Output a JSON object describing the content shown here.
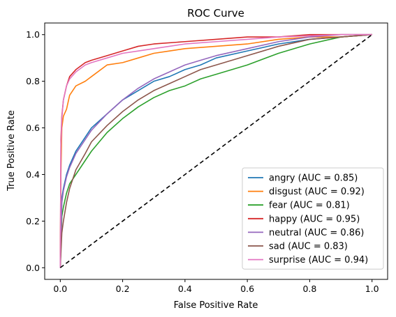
{
  "chart_data": {
    "type": "line",
    "title": "ROC Curve",
    "xlabel": "False Positive Rate",
    "ylabel": "True Positive Rate",
    "xlim": [
      -0.05,
      1.05
    ],
    "ylim": [
      -0.05,
      1.05
    ],
    "xticks": [
      "0.0",
      "0.2",
      "0.4",
      "0.6",
      "0.8",
      "1.0"
    ],
    "yticks": [
      "0.0",
      "0.2",
      "0.4",
      "0.6",
      "0.8",
      "1.0"
    ],
    "grid": false,
    "legend_position": "lower-right",
    "diagonal": {
      "x": [
        0,
        1
      ],
      "y": [
        0,
        1
      ],
      "color": "#000000",
      "dash": true
    },
    "series": [
      {
        "name": "angry (AUC = 0.85)",
        "color": "#1f77b4",
        "x": [
          0,
          0.005,
          0.01,
          0.02,
          0.03,
          0.05,
          0.08,
          0.1,
          0.15,
          0.2,
          0.25,
          0.3,
          0.35,
          0.4,
          0.45,
          0.5,
          0.6,
          0.7,
          0.8,
          0.9,
          1.0
        ],
        "y": [
          0,
          0.3,
          0.34,
          0.4,
          0.44,
          0.5,
          0.56,
          0.6,
          0.66,
          0.72,
          0.76,
          0.8,
          0.82,
          0.85,
          0.87,
          0.9,
          0.93,
          0.96,
          0.98,
          0.99,
          1.0
        ]
      },
      {
        "name": "disgust (AUC = 0.92)",
        "color": "#ff7f0e",
        "x": [
          0,
          0.002,
          0.005,
          0.01,
          0.02,
          0.03,
          0.05,
          0.08,
          0.1,
          0.15,
          0.2,
          0.25,
          0.3,
          0.35,
          0.4,
          0.5,
          0.6,
          0.7,
          0.8,
          0.9,
          1.0
        ],
        "y": [
          0,
          0.4,
          0.6,
          0.65,
          0.68,
          0.74,
          0.78,
          0.8,
          0.82,
          0.87,
          0.88,
          0.9,
          0.92,
          0.93,
          0.94,
          0.95,
          0.96,
          0.98,
          0.99,
          0.99,
          1.0
        ]
      },
      {
        "name": "fear (AUC = 0.81)",
        "color": "#2ca02c",
        "x": [
          0,
          0.005,
          0.01,
          0.02,
          0.03,
          0.05,
          0.08,
          0.1,
          0.15,
          0.2,
          0.25,
          0.3,
          0.35,
          0.4,
          0.45,
          0.5,
          0.6,
          0.7,
          0.8,
          0.9,
          1.0
        ],
        "y": [
          0,
          0.22,
          0.26,
          0.32,
          0.36,
          0.4,
          0.46,
          0.5,
          0.58,
          0.64,
          0.69,
          0.73,
          0.76,
          0.78,
          0.81,
          0.83,
          0.87,
          0.92,
          0.96,
          0.99,
          1.0
        ]
      },
      {
        "name": "happy (AUC = 0.95)",
        "color": "#d62728",
        "x": [
          0,
          0.002,
          0.005,
          0.01,
          0.02,
          0.03,
          0.05,
          0.08,
          0.1,
          0.15,
          0.2,
          0.25,
          0.3,
          0.4,
          0.5,
          0.6,
          0.7,
          0.8,
          0.9,
          1.0
        ],
        "y": [
          0,
          0.55,
          0.65,
          0.72,
          0.78,
          0.82,
          0.85,
          0.88,
          0.89,
          0.91,
          0.93,
          0.95,
          0.96,
          0.97,
          0.98,
          0.99,
          0.99,
          1.0,
          1.0,
          1.0
        ]
      },
      {
        "name": "neutral (AUC = 0.86)",
        "color": "#9467bd",
        "x": [
          0,
          0.005,
          0.01,
          0.02,
          0.03,
          0.05,
          0.08,
          0.1,
          0.15,
          0.2,
          0.25,
          0.3,
          0.35,
          0.4,
          0.45,
          0.5,
          0.6,
          0.7,
          0.8,
          0.9,
          1.0
        ],
        "y": [
          0,
          0.28,
          0.33,
          0.39,
          0.43,
          0.49,
          0.55,
          0.59,
          0.66,
          0.72,
          0.77,
          0.81,
          0.84,
          0.87,
          0.89,
          0.91,
          0.94,
          0.97,
          0.99,
          1.0,
          1.0
        ]
      },
      {
        "name": "sad (AUC = 0.83)",
        "color": "#8c564b",
        "x": [
          0,
          0.005,
          0.01,
          0.02,
          0.03,
          0.05,
          0.08,
          0.1,
          0.15,
          0.2,
          0.25,
          0.3,
          0.35,
          0.4,
          0.45,
          0.5,
          0.6,
          0.7,
          0.8,
          0.9,
          1.0
        ],
        "y": [
          0,
          0.15,
          0.2,
          0.28,
          0.34,
          0.42,
          0.49,
          0.54,
          0.61,
          0.67,
          0.72,
          0.76,
          0.79,
          0.82,
          0.85,
          0.87,
          0.91,
          0.95,
          0.98,
          0.99,
          1.0
        ]
      },
      {
        "name": "surprise (AUC = 0.94)",
        "color": "#e377c2",
        "x": [
          0,
          0.002,
          0.005,
          0.01,
          0.02,
          0.03,
          0.05,
          0.08,
          0.1,
          0.15,
          0.2,
          0.25,
          0.3,
          0.4,
          0.5,
          0.6,
          0.7,
          0.8,
          0.9,
          1.0
        ],
        "y": [
          0,
          0.52,
          0.64,
          0.72,
          0.78,
          0.81,
          0.84,
          0.87,
          0.88,
          0.9,
          0.92,
          0.93,
          0.94,
          0.96,
          0.97,
          0.98,
          0.99,
          0.995,
          1.0,
          1.0
        ]
      }
    ]
  }
}
